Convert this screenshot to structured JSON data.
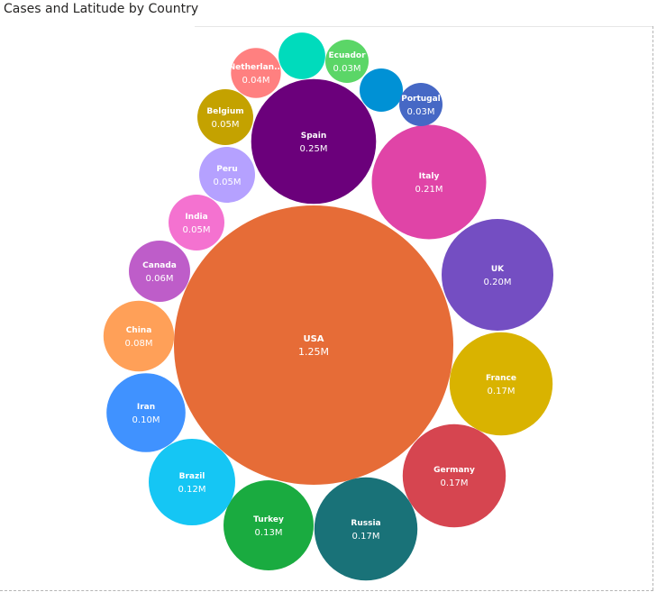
{
  "chart_data": {
    "type": "packed-bubble",
    "title": "Cases and Latitude by Country",
    "bubbles": [
      {
        "name": "USA",
        "value": 1.25,
        "label": "1.25M",
        "color": "#E66C37"
      },
      {
        "name": "Spain",
        "value": 0.25,
        "label": "0.25M",
        "color": "#6B007B"
      },
      {
        "name": "Italy",
        "value": 0.21,
        "label": "0.21M",
        "color": "#E044A7"
      },
      {
        "name": "UK",
        "value": 0.2,
        "label": "0.20M",
        "color": "#744EC2"
      },
      {
        "name": "France",
        "value": 0.17,
        "label": "0.17M",
        "color": "#D9B300"
      },
      {
        "name": "Germany",
        "value": 0.17,
        "label": "0.17M",
        "color": "#D64550"
      },
      {
        "name": "Russia",
        "value": 0.17,
        "label": "0.17M",
        "color": "#197278"
      },
      {
        "name": "Turkey",
        "value": 0.13,
        "label": "0.13M",
        "color": "#1AAB40"
      },
      {
        "name": "Brazil",
        "value": 0.12,
        "label": "0.12M",
        "color": "#15C6F4"
      },
      {
        "name": "Iran",
        "value": 0.1,
        "label": "0.10M",
        "color": "#4092FF"
      },
      {
        "name": "China",
        "value": 0.08,
        "label": "0.08M",
        "color": "#FFA058"
      },
      {
        "name": "Canada",
        "value": 0.06,
        "label": "0.06M",
        "color": "#BE5DC9"
      },
      {
        "name": "India",
        "value": 0.05,
        "label": "0.05M",
        "color": "#F472D0"
      },
      {
        "name": "Peru",
        "value": 0.05,
        "label": "0.05M",
        "color": "#B5A1FF"
      },
      {
        "name": "Belgium",
        "value": 0.05,
        "label": "0.05M",
        "color": "#C4A200"
      },
      {
        "name": "Netherlan...",
        "value": 0.04,
        "label": "0.04M",
        "color": "#FF8080"
      },
      {
        "name": "",
        "value": 0.035,
        "label": "",
        "color": "#00DBBC"
      },
      {
        "name": "Ecuador",
        "value": 0.03,
        "label": "0.03M",
        "color": "#5BD667"
      },
      {
        "name": "",
        "value": 0.03,
        "label": "",
        "color": "#0091D5"
      },
      {
        "name": "Portugal",
        "value": 0.03,
        "label": "0.03M",
        "color": "#4668C5"
      }
    ]
  }
}
